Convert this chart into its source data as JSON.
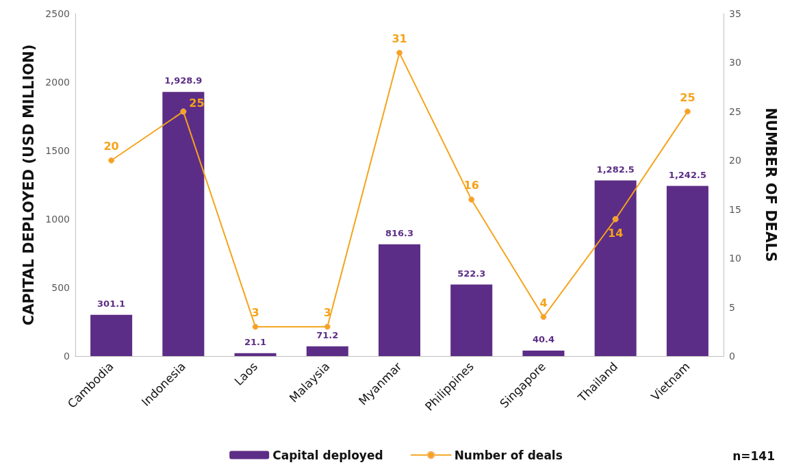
{
  "chart_data": {
    "type": "bar",
    "categories": [
      "Cambodia",
      "Indonesia",
      "Laos",
      "Malaysia",
      "Myanmar",
      "Philippines",
      "Singapore",
      "Thailand",
      "Vietnam"
    ],
    "series": [
      {
        "name": "Capital deployed",
        "color": "#5c2d86",
        "values": [
          301.1,
          1928.9,
          21.1,
          71.2,
          816.3,
          522.3,
          40.4,
          1282.5,
          1242.5
        ],
        "value_labels": [
          "301.1",
          "1,928.9",
          "21.1",
          "71.2",
          "816.3",
          "522.3",
          "40.4",
          "1,282.5",
          "1,242.5"
        ]
      },
      {
        "name": "Number of deals",
        "type": "line",
        "axis": "y2",
        "color": "#f5a31a",
        "values": [
          20,
          25,
          3,
          3,
          31,
          16,
          4,
          14,
          25
        ],
        "value_labels": [
          "20",
          "25",
          "3",
          "3",
          "31",
          "16",
          "4",
          "14",
          "25"
        ]
      }
    ],
    "ylabel": "CAPITAL DEPLOYED (USD MILLION)",
    "y2label": "NUMBER OF DEALS",
    "ylim": [
      0,
      2500
    ],
    "yticks": [
      0,
      500,
      1000,
      1500,
      2000,
      2500
    ],
    "y2lim": [
      0,
      35
    ],
    "y2ticks": [
      0,
      5,
      10,
      15,
      20,
      25,
      30,
      35
    ],
    "marker": "circle",
    "line_style": "solid",
    "grid": false,
    "legend": "bottom",
    "annotations": [
      "n=141"
    ]
  }
}
